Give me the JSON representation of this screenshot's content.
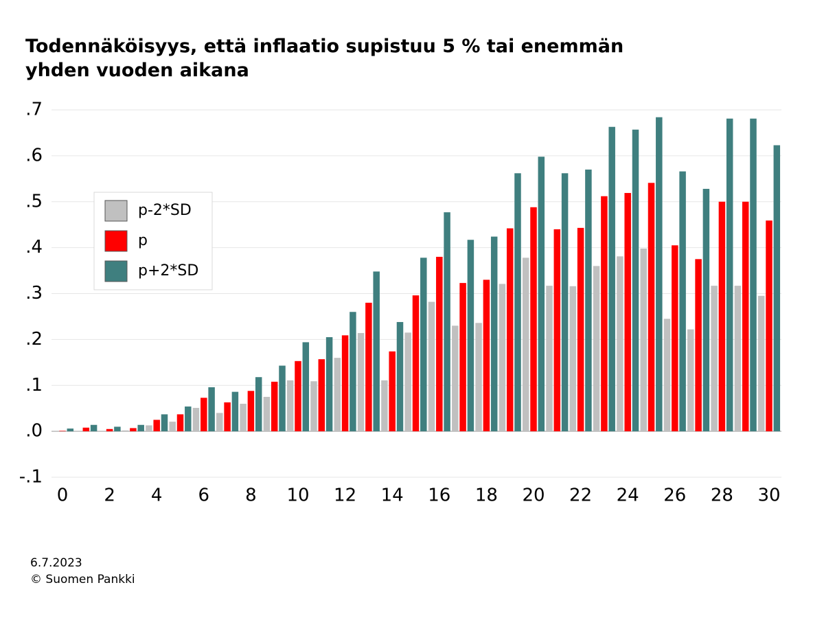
{
  "chart_data": {
    "type": "bar",
    "title": "Todennäköisyys, että inflaatio supistuu 5 % tai enemmän yhden vuoden aikana",
    "categories": [
      "0",
      null,
      "2",
      null,
      "4",
      null,
      "6",
      null,
      "8",
      null,
      "10",
      null,
      "12",
      null,
      "14",
      null,
      "16",
      null,
      "18",
      null,
      "20",
      null,
      "22",
      null,
      "24",
      null,
      "26",
      null,
      "28",
      null,
      "30"
    ],
    "series": [
      {
        "name": "p-2*SD",
        "color": "#c0c0c0",
        "values": [
          -0.001,
          0.001,
          0.001,
          0.002,
          0.013,
          0.021,
          0.051,
          0.04,
          0.06,
          0.075,
          0.111,
          0.109,
          0.16,
          0.214,
          0.111,
          0.215,
          0.282,
          0.23,
          0.236,
          0.321,
          0.378,
          0.317,
          0.316,
          0.36,
          0.381,
          0.398,
          0.245,
          0.222,
          0.317,
          0.317,
          0.295
        ]
      },
      {
        "name": "p",
        "color": "#ff0000",
        "values": [
          0.001,
          0.008,
          0.005,
          0.007,
          0.025,
          0.037,
          0.073,
          0.063,
          0.088,
          0.108,
          0.153,
          0.157,
          0.209,
          0.28,
          0.174,
          0.296,
          0.38,
          0.323,
          0.33,
          0.442,
          0.488,
          0.44,
          0.443,
          0.512,
          0.519,
          0.541,
          0.405,
          0.375,
          0.5,
          0.5,
          0.459
        ]
      },
      {
        "name": "p+2*SD",
        "color": "#3f7f7f",
        "values": [
          0.006,
          0.014,
          0.01,
          0.014,
          0.037,
          0.054,
          0.096,
          0.086,
          0.118,
          0.143,
          0.194,
          0.205,
          0.26,
          0.348,
          0.238,
          0.378,
          0.477,
          0.417,
          0.424,
          0.562,
          0.598,
          0.562,
          0.57,
          0.663,
          0.657,
          0.684,
          0.566,
          0.528,
          0.681,
          0.681,
          0.623
        ]
      }
    ],
    "ylim": [
      -0.1,
      0.7
    ],
    "yticks": [
      {
        "value": -0.1,
        "label": "-.1"
      },
      {
        "value": 0,
        "label": ".0"
      },
      {
        "value": 0.1,
        "label": ".1"
      },
      {
        "value": 0.2,
        "label": ".2"
      },
      {
        "value": 0.3,
        "label": ".3"
      },
      {
        "value": 0.4,
        "label": ".4"
      },
      {
        "value": 0.5,
        "label": ".5"
      },
      {
        "value": 0.6,
        "label": ".6"
      },
      {
        "value": 0.7,
        "label": ".7"
      }
    ],
    "grid": true,
    "legend_position": "center left"
  },
  "footer": {
    "date": "6.7.2023",
    "source": "© Suomen Pankki"
  }
}
